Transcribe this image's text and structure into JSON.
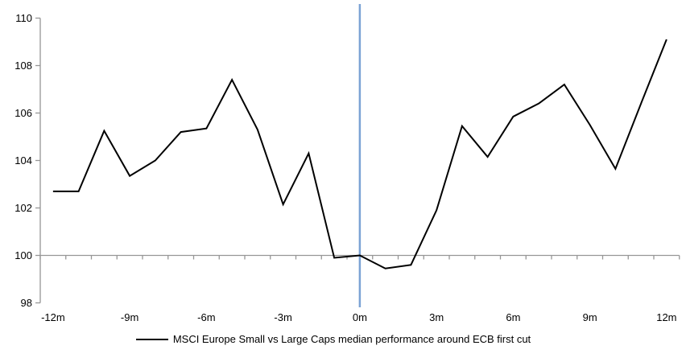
{
  "chart_data": {
    "type": "line",
    "title": "",
    "x": [
      -12,
      -11,
      -10,
      -9,
      -8,
      -7,
      -6,
      -5,
      -4,
      -3,
      -2,
      -1,
      0,
      1,
      2,
      3,
      4,
      5,
      6,
      7,
      8,
      9,
      10,
      11,
      12
    ],
    "x_tick_months": [
      -12,
      -9,
      -6,
      -3,
      0,
      3,
      6,
      9,
      12
    ],
    "x_tick_labels": [
      "-12m",
      "-9m",
      "-6m",
      "-3m",
      "0m",
      "3m",
      "6m",
      "9m",
      "12m"
    ],
    "series": [
      {
        "name": "MSCI Europe Small vs Large Caps median performance around ECB first cut",
        "color": "#000000",
        "values": [
          102.7,
          102.7,
          105.25,
          103.35,
          104.0,
          105.2,
          105.35,
          107.4,
          105.3,
          102.15,
          104.3,
          99.9,
          100.0,
          99.45,
          99.6,
          101.9,
          105.45,
          104.15,
          105.85,
          106.4,
          107.2,
          105.5,
          103.65,
          106.4,
          109.1
        ]
      }
    ],
    "ylim": [
      98,
      110
    ],
    "yticks": [
      98,
      100,
      102,
      104,
      106,
      108,
      110
    ],
    "baseline_value": 100,
    "event_line": {
      "x": 0,
      "color": "#7BA3D4"
    },
    "axis_color": "#969696",
    "grid": false,
    "legend_position": "bottom"
  }
}
